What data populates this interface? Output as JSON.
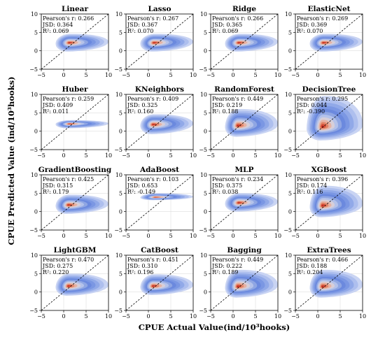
{
  "figure": {
    "xlabel": "CPUE Actual Value(ind/10³hooks)",
    "ylabel": "CPUE Predicted Value (ind/10³hooks)"
  },
  "chart_data": [
    {
      "type": "heatmap",
      "title": "Linear",
      "xlim": [
        -5,
        10
      ],
      "ylim": [
        -5,
        10
      ],
      "xticks": [
        -5,
        0,
        5,
        10
      ],
      "yticks": [
        -5,
        0,
        5,
        10
      ],
      "grid": true,
      "reference_line": "y=x",
      "stats": [
        {
          "label": "Pearson's r:",
          "value": "0.266"
        },
        {
          "label": "JSD:",
          "value": "0.364"
        },
        {
          "label": "R²:",
          "value": "0.069"
        }
      ],
      "density": {
        "center": [
          1.2,
          2.2
        ],
        "x_range": [
          -1.8,
          10
        ],
        "y_range": [
          -0.2,
          4.6
        ]
      }
    },
    {
      "type": "heatmap",
      "title": "Lasso",
      "xlim": [
        -5,
        10
      ],
      "ylim": [
        -5,
        10
      ],
      "xticks": [
        -5,
        0,
        5,
        10
      ],
      "yticks": [
        -5,
        0,
        5,
        10
      ],
      "grid": true,
      "reference_line": "y=x",
      "stats": [
        {
          "label": "Pearson's r:",
          "value": "0.267"
        },
        {
          "label": "JSD:",
          "value": "0.367"
        },
        {
          "label": "R²:",
          "value": "0.070"
        }
      ],
      "density": {
        "center": [
          1.2,
          2.2
        ],
        "x_range": [
          -1.8,
          10
        ],
        "y_range": [
          -0.2,
          4.6
        ]
      }
    },
    {
      "type": "heatmap",
      "title": "Ridge",
      "xlim": [
        -5,
        10
      ],
      "ylim": [
        -5,
        10
      ],
      "xticks": [
        -5,
        0,
        5,
        10
      ],
      "yticks": [
        -5,
        0,
        5,
        10
      ],
      "grid": true,
      "reference_line": "y=x",
      "stats": [
        {
          "label": "Pearson's r:",
          "value": "0.266"
        },
        {
          "label": "JSD:",
          "value": "0.365"
        },
        {
          "label": "R²:",
          "value": "0.069"
        }
      ],
      "density": {
        "center": [
          1.2,
          2.2
        ],
        "x_range": [
          -1.8,
          10
        ],
        "y_range": [
          -0.2,
          4.6
        ]
      }
    },
    {
      "type": "heatmap",
      "title": "ElasticNet",
      "xlim": [
        -5,
        10
      ],
      "ylim": [
        -5,
        10
      ],
      "xticks": [
        -5,
        0,
        5,
        10
      ],
      "yticks": [
        -5,
        0,
        5,
        10
      ],
      "grid": true,
      "reference_line": "y=x",
      "stats": [
        {
          "label": "Pearson's r:",
          "value": "0.269"
        },
        {
          "label": "JSD:",
          "value": "0.369"
        },
        {
          "label": "R²:",
          "value": "0.070"
        }
      ],
      "density": {
        "center": [
          1.2,
          2.2
        ],
        "x_range": [
          -1.8,
          10
        ],
        "y_range": [
          -0.2,
          4.6
        ]
      }
    },
    {
      "type": "heatmap",
      "title": "Huber",
      "xlim": [
        -5,
        10
      ],
      "ylim": [
        -5,
        10
      ],
      "xticks": [
        -5,
        0,
        5,
        10
      ],
      "yticks": [
        -5,
        0,
        5,
        10
      ],
      "grid": true,
      "reference_line": "y=x",
      "stats": [
        {
          "label": "Pearson's r:",
          "value": "0.259"
        },
        {
          "label": "JSD:",
          "value": "0.409"
        },
        {
          "label": "R²:",
          "value": "0.011"
        }
      ],
      "density": {
        "center": [
          1.2,
          2.0
        ],
        "x_range": [
          -1.8,
          10
        ],
        "y_range": [
          0.8,
          3.0
        ]
      }
    },
    {
      "type": "heatmap",
      "title": "KNeighbors",
      "xlim": [
        -5,
        10
      ],
      "ylim": [
        -5,
        10
      ],
      "xticks": [
        -5,
        0,
        5,
        10
      ],
      "yticks": [
        -5,
        0,
        5,
        10
      ],
      "grid": true,
      "reference_line": "y=x",
      "stats": [
        {
          "label": "Pearson's r:",
          "value": "0.409"
        },
        {
          "label": "JSD:",
          "value": "0.325"
        },
        {
          "label": "R²:",
          "value": "0.160"
        }
      ],
      "density": {
        "center": [
          1.0,
          1.8
        ],
        "x_range": [
          -1.8,
          10
        ],
        "y_range": [
          -0.8,
          4.6
        ]
      }
    },
    {
      "type": "heatmap",
      "title": "RandomForest",
      "xlim": [
        -5,
        10
      ],
      "ylim": [
        -5,
        10
      ],
      "xticks": [
        -5,
        0,
        5,
        10
      ],
      "yticks": [
        -5,
        0,
        5,
        10
      ],
      "grid": true,
      "reference_line": "y=x",
      "stats": [
        {
          "label": "Pearson's r:",
          "value": "0.449"
        },
        {
          "label": "JSD:",
          "value": "0.219"
        },
        {
          "label": "R²:",
          "value": "0.188"
        }
      ],
      "density": {
        "center": [
          1.0,
          1.5
        ],
        "x_range": [
          -1.8,
          10
        ],
        "y_range": [
          -1.5,
          6.0
        ]
      }
    },
    {
      "type": "heatmap",
      "title": "DecisionTree",
      "xlim": [
        -5,
        10
      ],
      "ylim": [
        -5,
        10
      ],
      "xticks": [
        -5,
        0,
        5,
        10
      ],
      "yticks": [
        -5,
        0,
        5,
        10
      ],
      "grid": true,
      "reference_line": "y=x",
      "stats": [
        {
          "label": "Pearson's r:",
          "value": "0.295"
        },
        {
          "label": "JSD:",
          "value": "0.044"
        },
        {
          "label": "R²:",
          "value": "-0.390"
        }
      ],
      "density": {
        "center": [
          1.0,
          1.2
        ],
        "x_range": [
          -2.5,
          10
        ],
        "y_range": [
          -2.5,
          9.5
        ]
      }
    },
    {
      "type": "heatmap",
      "title": "GradientBoosting",
      "xlim": [
        -5,
        10
      ],
      "ylim": [
        -5,
        10
      ],
      "xticks": [
        -5,
        0,
        5,
        10
      ],
      "yticks": [
        -5,
        0,
        5,
        10
      ],
      "grid": true,
      "reference_line": "y=x",
      "stats": [
        {
          "label": "Pearson's r:",
          "value": "0.425"
        },
        {
          "label": "JSD:",
          "value": "0.315"
        },
        {
          "label": "R²:",
          "value": "0.179"
        }
      ],
      "density": {
        "center": [
          1.0,
          1.8
        ],
        "x_range": [
          -1.8,
          10
        ],
        "y_range": [
          -0.6,
          4.6
        ]
      }
    },
    {
      "type": "heatmap",
      "title": "AdaBoost",
      "xlim": [
        -5,
        10
      ],
      "ylim": [
        -5,
        10
      ],
      "xticks": [
        -5,
        0,
        5,
        10
      ],
      "yticks": [
        -5,
        0,
        5,
        10
      ],
      "grid": true,
      "reference_line": "y=x",
      "stats": [
        {
          "label": "Pearson's r:",
          "value": "0.103"
        },
        {
          "label": "JSD:",
          "value": "0.653"
        },
        {
          "label": "R²:",
          "value": "-0.149"
        }
      ],
      "density": {
        "center": [
          1.5,
          3.9
        ],
        "x_range": [
          -1.8,
          10
        ],
        "y_range": [
          3.1,
          5.0
        ]
      }
    },
    {
      "type": "heatmap",
      "title": "MLP",
      "xlim": [
        -5,
        10
      ],
      "ylim": [
        -5,
        10
      ],
      "xticks": [
        -5,
        0,
        5,
        10
      ],
      "yticks": [
        -5,
        0,
        5,
        10
      ],
      "grid": true,
      "reference_line": "y=x",
      "stats": [
        {
          "label": "Pearson's r:",
          "value": "0.234"
        },
        {
          "label": "JSD:",
          "value": "0.375"
        },
        {
          "label": "R²:",
          "value": "0.038"
        }
      ],
      "density": {
        "center": [
          1.2,
          2.4
        ],
        "x_range": [
          -1.8,
          10
        ],
        "y_range": [
          0.0,
          5.0
        ]
      }
    },
    {
      "type": "heatmap",
      "title": "XGBoost",
      "xlim": [
        -5,
        10
      ],
      "ylim": [
        -5,
        10
      ],
      "xticks": [
        -5,
        0,
        5,
        10
      ],
      "yticks": [
        -5,
        0,
        5,
        10
      ],
      "grid": true,
      "reference_line": "y=x",
      "stats": [
        {
          "label": "Pearson's r:",
          "value": "0.396"
        },
        {
          "label": "JSD:",
          "value": "0.174"
        },
        {
          "label": "R²:",
          "value": "0.116"
        }
      ],
      "density": {
        "center": [
          1.0,
          1.6
        ],
        "x_range": [
          -1.8,
          10
        ],
        "y_range": [
          -1.5,
          7.0
        ]
      }
    },
    {
      "type": "heatmap",
      "title": "LightGBM",
      "xlim": [
        -5,
        10
      ],
      "ylim": [
        -5,
        10
      ],
      "xticks": [
        -5,
        0,
        5,
        10
      ],
      "yticks": [
        -5,
        0,
        5,
        10
      ],
      "grid": true,
      "reference_line": "y=x",
      "stats": [
        {
          "label": "Pearson's r:",
          "value": "0.470"
        },
        {
          "label": "JSD:",
          "value": "0.275"
        },
        {
          "label": "R²:",
          "value": "0.220"
        }
      ],
      "density": {
        "center": [
          1.0,
          1.6
        ],
        "x_range": [
          -1.8,
          10
        ],
        "y_range": [
          -1.0,
          5.0
        ]
      }
    },
    {
      "type": "heatmap",
      "title": "CatBoost",
      "xlim": [
        -5,
        10
      ],
      "ylim": [
        -5,
        10
      ],
      "xticks": [
        -5,
        0,
        5,
        10
      ],
      "yticks": [
        -5,
        0,
        5,
        10
      ],
      "grid": true,
      "reference_line": "y=x",
      "stats": [
        {
          "label": "Pearson's r:",
          "value": "0.451"
        },
        {
          "label": "JSD:",
          "value": "0.310"
        },
        {
          "label": "R²:",
          "value": "0.196"
        }
      ],
      "density": {
        "center": [
          1.0,
          1.6
        ],
        "x_range": [
          -1.8,
          10
        ],
        "y_range": [
          -0.8,
          4.8
        ]
      }
    },
    {
      "type": "heatmap",
      "title": "Bagging",
      "xlim": [
        -5,
        10
      ],
      "ylim": [
        -5,
        10
      ],
      "xticks": [
        -5,
        0,
        5,
        10
      ],
      "yticks": [
        -5,
        0,
        5,
        10
      ],
      "grid": true,
      "reference_line": "y=x",
      "stats": [
        {
          "label": "Pearson's r:",
          "value": "0.449"
        },
        {
          "label": "JSD:",
          "value": "0.222"
        },
        {
          "label": "R²:",
          "value": "0.189"
        }
      ],
      "density": {
        "center": [
          1.0,
          1.5
        ],
        "x_range": [
          -1.8,
          10
        ],
        "y_range": [
          -1.5,
          6.0
        ]
      }
    },
    {
      "type": "heatmap",
      "title": "ExtraTrees",
      "xlim": [
        -5,
        10
      ],
      "ylim": [
        -5,
        10
      ],
      "xticks": [
        -5,
        0,
        5,
        10
      ],
      "yticks": [
        -5,
        0,
        5,
        10
      ],
      "grid": true,
      "reference_line": "y=x",
      "stats": [
        {
          "label": "Pearson's r:",
          "value": "0.466"
        },
        {
          "label": "JSD:",
          "value": "0.188"
        },
        {
          "label": "R²:",
          "value": "0.204"
        }
      ],
      "density": {
        "center": [
          1.0,
          1.5
        ],
        "x_range": [
          -1.8,
          10
        ],
        "y_range": [
          -1.5,
          6.0
        ]
      }
    }
  ],
  "colors": {
    "density_levels": [
      "#c9d4f3",
      "#aebfee",
      "#91a9e8",
      "#7b97e3",
      "#6b89de",
      "#8fa6e3",
      "#b4c2ea",
      "#d7cfd9",
      "#e6b2a3",
      "#e38468",
      "#d24a33",
      "#c2221f"
    ],
    "grid": "#dedede",
    "reference_line": "#000000"
  }
}
